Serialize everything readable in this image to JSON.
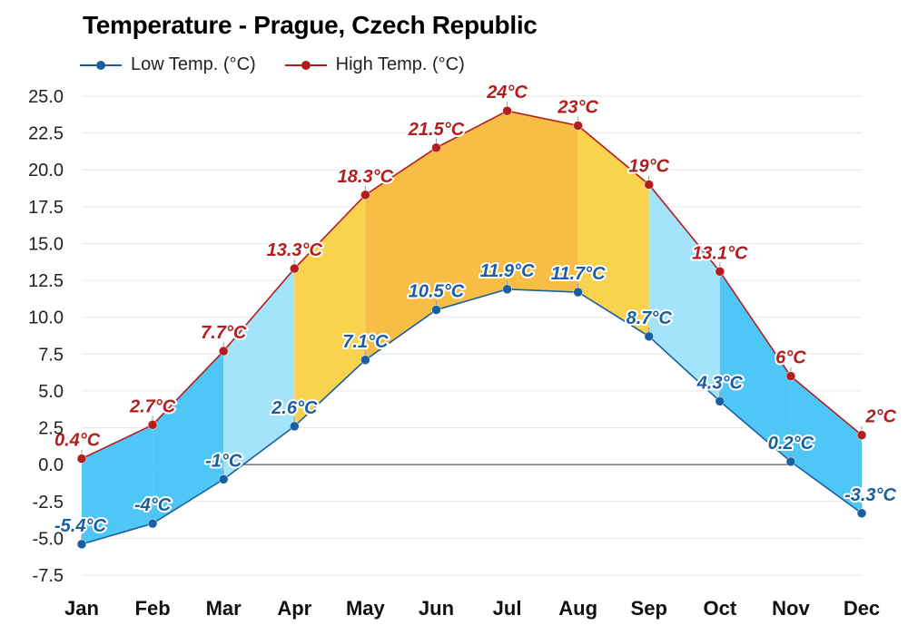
{
  "title": "Temperature - Prague, Czech Republic",
  "legend": {
    "low_label": "Low Temp. (°C)",
    "high_label": "High Temp. (°C)"
  },
  "colors": {
    "low": "#1a5fa0",
    "high": "#b21e1e",
    "cold": "#4ec7f7",
    "cool": "#a3e4fa",
    "mild": "#f9d24e",
    "warm": "#f8bd45"
  },
  "chart_data": {
    "type": "area",
    "title": "Temperature - Prague, Czech Republic",
    "categories": [
      "Jan",
      "Feb",
      "Mar",
      "Apr",
      "May",
      "Jun",
      "Jul",
      "Aug",
      "Sep",
      "Oct",
      "Nov",
      "Dec"
    ],
    "series": [
      {
        "name": "Low Temp. (°C)",
        "values": [
          -5.4,
          -4,
          -1,
          2.6,
          7.1,
          10.5,
          11.9,
          11.7,
          8.7,
          4.3,
          0.2,
          -3.3
        ],
        "labels": [
          "-5.4°C",
          "-4°C",
          "-1°C",
          "2.6°C",
          "7.1°C",
          "10.5°C",
          "11.9°C",
          "11.7°C",
          "8.7°C",
          "4.3°C",
          "0.2°C",
          "-3.3°C"
        ]
      },
      {
        "name": "High Temp. (°C)",
        "values": [
          0.4,
          2.7,
          7.7,
          13.3,
          18.3,
          21.5,
          24,
          23,
          19,
          13.1,
          6,
          2
        ],
        "labels": [
          "0.4°C",
          "2.7°C",
          "7.7°C",
          "13.3°C",
          "18.3°C",
          "21.5°C",
          "24°C",
          "23°C",
          "19°C",
          "13.1°C",
          "6°C",
          "2°C"
        ]
      }
    ],
    "ylim": [
      -7.5,
      25
    ],
    "yticks": [
      "25.0",
      "22.5",
      "20.0",
      "17.5",
      "15.0",
      "12.5",
      "10.0",
      "7.5",
      "5.0",
      "2.5",
      "0.0",
      "-2.5",
      "-5.0",
      "-7.5"
    ],
    "month_bands": [
      "cold",
      "cold",
      "cool",
      "mild",
      "warm",
      "warm",
      "warm",
      "mild",
      "cool",
      "cold",
      "cold"
    ],
    "grid": true,
    "legend_position": "top-left"
  }
}
